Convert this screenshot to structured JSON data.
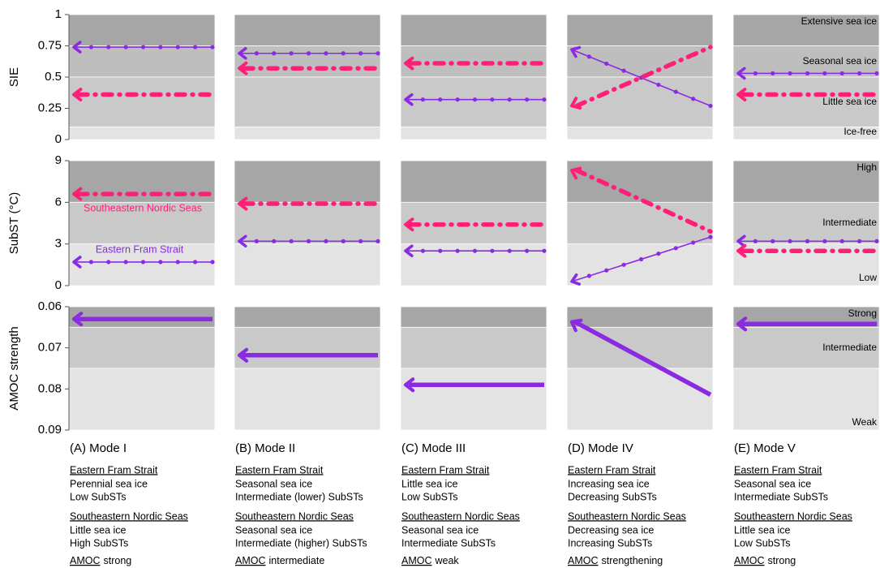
{
  "chart_data": {
    "type": "line",
    "series": [
      {
        "name": "Eastern Fram Strait",
        "color": "#8a2be2"
      },
      {
        "name": "Southeastern Nordic Seas",
        "color": "#ff1f78"
      },
      {
        "color": "#d4a03c"
      }
    ],
    "rows": [
      {
        "ylabel": "SIE",
        "ylim": [
          0,
          1
        ],
        "yticks": [
          0,
          0.25,
          0.5,
          0.75,
          1
        ],
        "bands": [
          {
            "label": "Extensive sea ice",
            "from": 0.75,
            "to": 1,
            "color": "#a6a6a6"
          },
          {
            "label": "Seasonal sea ice",
            "from": 0.5,
            "to": 0.75,
            "color": "#bebebe"
          },
          {
            "label": "Little sea ice",
            "from": 0.1,
            "to": 0.5,
            "color": "#c9c9c9"
          },
          {
            "label": "Ice-free",
            "from": 0,
            "to": 0.1,
            "color": "#e3e3e3"
          }
        ]
      },
      {
        "ylabel": "SubST (°C)",
        "ylim": [
          0,
          9
        ],
        "yticks": [
          0,
          3,
          6,
          9
        ],
        "bands": [
          {
            "label": "High",
            "from": 6,
            "to": 9,
            "color": "#a6a6a6"
          },
          {
            "label": "Intermediate",
            "from": 3,
            "to": 6,
            "color": "#c9c9c9"
          },
          {
            "label": "Low",
            "from": 0,
            "to": 3,
            "color": "#e3e3e3"
          }
        ]
      },
      {
        "ylabel": "AMOC strength",
        "ylim": [
          0.09,
          0.06
        ],
        "yticks": [
          0.06,
          0.07,
          0.08,
          0.09
        ],
        "bands": [
          {
            "label": "Strong",
            "from": 0.065,
            "to": 0.06,
            "color": "#a6a6a6"
          },
          {
            "label": "Intermediate",
            "from": 0.075,
            "to": 0.065,
            "color": "#c9c9c9"
          },
          {
            "label": "Weak",
            "from": 0.09,
            "to": 0.075,
            "color": "#e3e3e3"
          }
        ]
      }
    ],
    "panels": [
      {
        "title": "(A) Mode I",
        "rows": [
          [
            [
              0.74,
              0.74
            ],
            [
              0.36,
              0.36
            ]
          ],
          [
            [
              1.7,
              1.7
            ],
            [
              6.6,
              6.6
            ]
          ],
          [
            [
              0.063,
              0.063
            ]
          ]
        ],
        "notes": [
          {
            "heading": "Eastern Fram Strait",
            "lines": [
              "Perennial sea ice",
              "Low SubSTs"
            ]
          },
          {
            "heading": "Southeastern Nordic Seas",
            "lines": [
              "Little sea ice",
              "High SubSTs"
            ]
          },
          {
            "heading": "AMOC",
            "lines": [
              "strong"
            ]
          }
        ]
      },
      {
        "title": "(B) Mode II",
        "rows": [
          [
            [
              0.69,
              0.69
            ],
            [
              0.57,
              0.57
            ]
          ],
          [
            [
              3.2,
              3.2
            ],
            [
              5.9,
              5.9
            ]
          ],
          [
            [
              0.0718,
              0.0718
            ]
          ]
        ],
        "notes": [
          {
            "heading": "Eastern Fram Strait",
            "lines": [
              "Seasonal sea ice",
              "Intermediate (lower) SubSTs"
            ]
          },
          {
            "heading": "Southeastern Nordic Seas",
            "lines": [
              "Seasonal sea ice",
              "Intermediate (higher) SubSTs"
            ]
          },
          {
            "heading": "AMOC",
            "lines": [
              "intermediate"
            ]
          }
        ]
      },
      {
        "title": "(C) Mode III",
        "rows": [
          [
            [
              0.32,
              0.32
            ],
            [
              0.61,
              0.61
            ]
          ],
          [
            [
              2.5,
              2.5
            ],
            [
              4.4,
              4.4
            ]
          ],
          [
            [
              0.079,
              0.079
            ]
          ]
        ],
        "notes": [
          {
            "heading": "Eastern Fram Strait",
            "lines": [
              "Little sea ice",
              "Low SubSTs"
            ]
          },
          {
            "heading": "Southeastern Nordic Seas",
            "lines": [
              "Seasonal sea ice",
              "Intermediate SubSTs"
            ]
          },
          {
            "heading": "AMOC",
            "lines": [
              "weak"
            ]
          }
        ]
      },
      {
        "title": "(D) Mode IV",
        "rows": [
          [
            [
              0.72,
              0.27
            ],
            [
              0.27,
              0.74
            ]
          ],
          [
            [
              0.3,
              3.5
            ],
            [
              8.3,
              3.9
            ]
          ],
          [
            [
              0.0637,
              0.0814
            ]
          ]
        ],
        "notes": [
          {
            "heading": "Eastern Fram Strait",
            "lines": [
              "Increasing sea ice",
              "Decreasing SubSTs"
            ]
          },
          {
            "heading": "Southeastern Nordic Seas",
            "lines": [
              "Decreasing sea ice",
              "Increasing SubSTs"
            ]
          },
          {
            "heading": "AMOC",
            "lines": [
              "strengthening"
            ]
          }
        ]
      },
      {
        "title": "(E) Mode V",
        "rows": [
          [
            [
              0.53,
              0.53
            ],
            [
              0.36,
              0.36
            ]
          ],
          [
            [
              3.2,
              3.2
            ],
            [
              2.5,
              2.5
            ]
          ],
          [
            [
              0.0642,
              0.0642
            ]
          ]
        ],
        "notes": [
          {
            "heading": "Eastern Fram Strait",
            "lines": [
              "Seasonal sea ice",
              "Intermediate SubSTs"
            ]
          },
          {
            "heading": "Southeastern Nordic Seas",
            "lines": [
              "Little sea ice",
              "Low SubSTs"
            ]
          },
          {
            "heading": "AMOC",
            "lines": [
              "strong"
            ]
          }
        ]
      }
    ]
  }
}
